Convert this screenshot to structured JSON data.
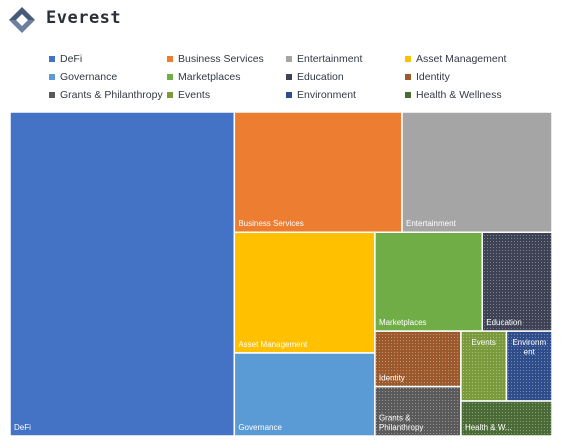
{
  "brand": {
    "name": "Everest",
    "logo_icon": "everest-logo-icon",
    "logo_color": "#465a7a"
  },
  "chart_data": {
    "type": "treemap",
    "title": "",
    "legend_position": "top",
    "categories": [
      {
        "name": "DeFi",
        "label": "DeFi",
        "color": "#4472c4",
        "pattern": "solid"
      },
      {
        "name": "Business Services",
        "label": "Business Services",
        "color": "#ed7d31",
        "pattern": "solid"
      },
      {
        "name": "Entertainment",
        "label": "Entertainment",
        "color": "#a5a5a5",
        "pattern": "solid"
      },
      {
        "name": "Asset Management",
        "label": "Asset Management",
        "color": "#ffc000",
        "pattern": "solid"
      },
      {
        "name": "Governance",
        "label": "Governance",
        "color": "#5b9bd5",
        "pattern": "solid"
      },
      {
        "name": "Marketplaces",
        "label": "Marketplaces",
        "color": "#70ad47",
        "pattern": "solid"
      },
      {
        "name": "Education",
        "label": "Education",
        "color": "#3d4255",
        "pattern": "dots"
      },
      {
        "name": "Identity",
        "label": "Identity",
        "color": "#9c5a2c",
        "pattern": "dots"
      },
      {
        "name": "Grants & Philanthropy",
        "label": "Grants & Philanthropy",
        "color": "#5a5a5a",
        "pattern": "dots"
      },
      {
        "name": "Events",
        "label": "Events",
        "color": "#7a9a3c",
        "pattern": "dots"
      },
      {
        "name": "Environment",
        "label": "Environment",
        "color": "#2e4d8a",
        "pattern": "dots"
      },
      {
        "name": "Health & Wellness",
        "label": "Health & W...",
        "color": "#4a6b35",
        "pattern": "dots"
      }
    ],
    "values": [
      137,
      38,
      34,
      32,
      22,
      20,
      13,
      9,
      8,
      6,
      6,
      6
    ]
  }
}
